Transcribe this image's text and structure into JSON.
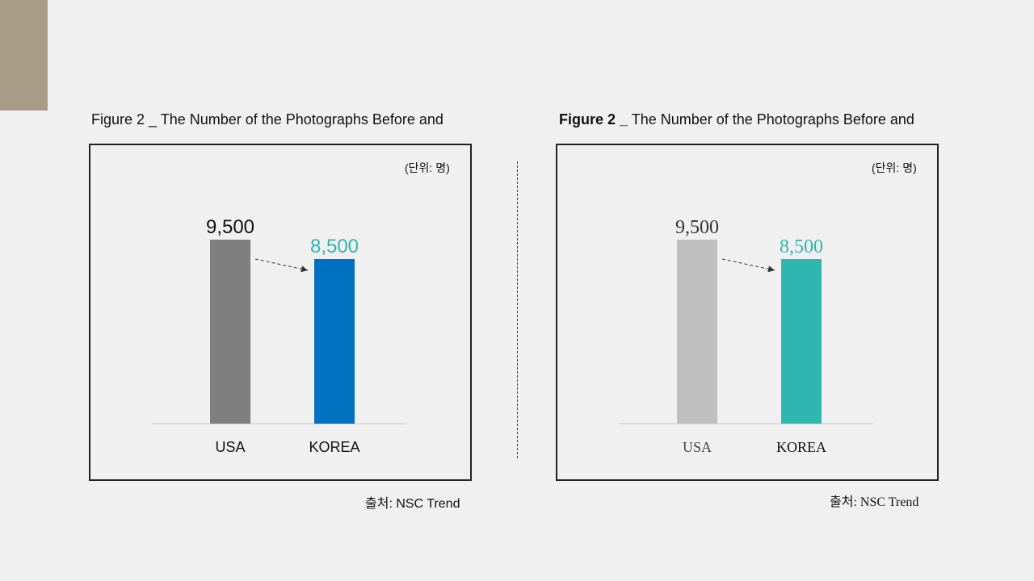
{
  "accent_colors": {
    "corner_block": "#a79c86"
  },
  "chart_data": [
    {
      "type": "bar",
      "title": "Figure 2 _ The Number of the Photographs Before and",
      "unit_label": "(단위: 명)",
      "source": "출처: NSC Trend",
      "categories": [
        "USA",
        "KOREA"
      ],
      "values": [
        9500,
        8500
      ],
      "value_labels": [
        "9,500",
        "8,500"
      ],
      "colors": [
        "#7f7f7f",
        "#0070c0"
      ],
      "label_colors": [
        "#111111",
        "#2eb7b1"
      ],
      "category_label_color": "#111111",
      "ylim": [
        0,
        9500
      ],
      "grid": false,
      "annotation": "dashed arrow from USA bar to KOREA bar"
    },
    {
      "type": "bar",
      "title_prefix": "Figure 2 _",
      "title_rest": "The Number of the Photographs Before and",
      "unit_label": "(단위: 명)",
      "source": "출처: NSC Trend",
      "categories": [
        "USA",
        "KOREA"
      ],
      "values": [
        9500,
        8500
      ],
      "value_labels": [
        "9,500",
        "8,500"
      ],
      "colors": [
        "#bfbfbf",
        "#2eb7b1"
      ],
      "label_colors": [
        "#333333",
        "#2eb7b1"
      ],
      "category_label_colors": [
        "#444444",
        "#111111"
      ],
      "ylim": [
        0,
        9500
      ],
      "grid": false,
      "annotation": "dashed arrow from USA bar to KOREA bar"
    }
  ]
}
